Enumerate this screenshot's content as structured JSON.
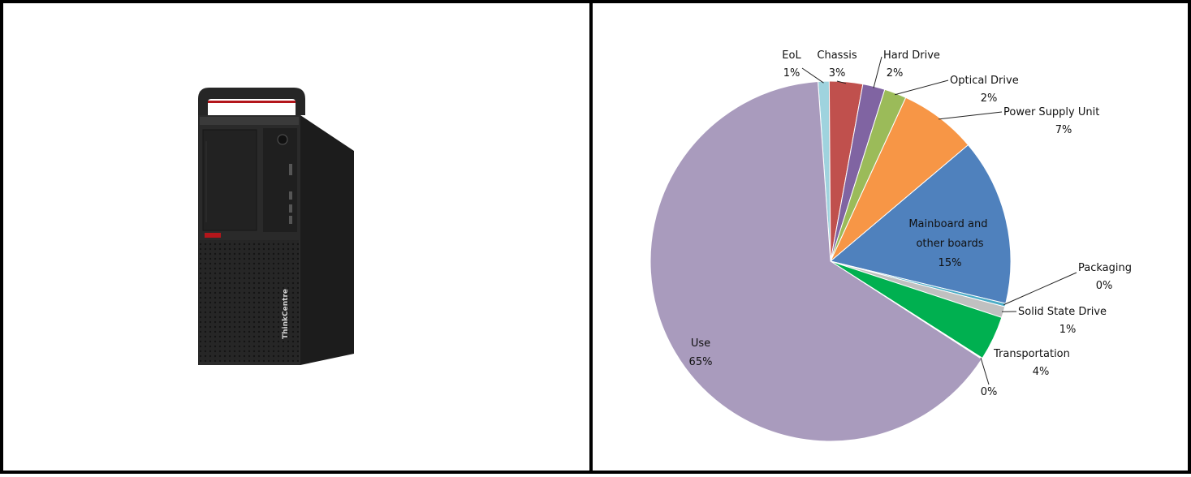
{
  "product_image": {
    "brand_text": "ThinkCentre",
    "body_color": "#262626",
    "accent_color": "#b3161b"
  },
  "chart_data": {
    "type": "pie",
    "title": "",
    "slices": [
      {
        "name": "EoL",
        "percent_label": "1%",
        "value": 1,
        "color": "#9fd3de"
      },
      {
        "name": "Chassis",
        "percent_label": "3%",
        "value": 3,
        "color": "#c0504d"
      },
      {
        "name": "Hard Drive",
        "percent_label": "2%",
        "value": 2,
        "color": "#8064a2"
      },
      {
        "name": "Optical Drive",
        "percent_label": "2%",
        "value": 2,
        "color": "#9bbb59"
      },
      {
        "name": "Power Supply Unit",
        "percent_label": "7%",
        "value": 7,
        "color": "#f79646"
      },
      {
        "name": "Mainboard and other boards",
        "percent_label": "15%",
        "value": 15,
        "color": "#4f81bd"
      },
      {
        "name": "Packaging",
        "percent_label": "0%",
        "value": 0.3,
        "color": "#4bacc6"
      },
      {
        "name": "Solid State Drive",
        "percent_label": "1%",
        "value": 1,
        "color": "#c0c0c0"
      },
      {
        "name": "Transportation",
        "percent_label": "4%",
        "value": 4,
        "color": "#00b050"
      },
      {
        "name": "",
        "percent_label": "0%",
        "value": 0.1,
        "color": "#ffffff"
      },
      {
        "name": "Use",
        "percent_label": "65%",
        "value": 65,
        "color": "#a99bbd"
      }
    ]
  }
}
